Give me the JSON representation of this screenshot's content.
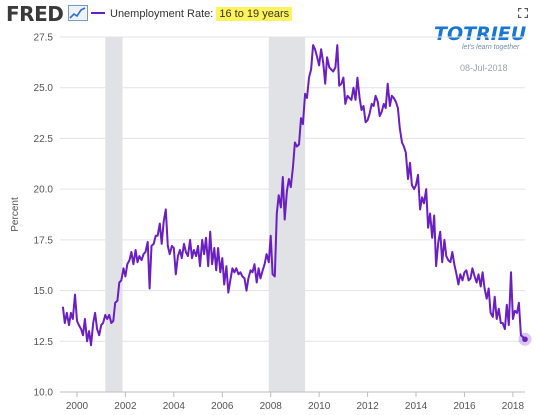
{
  "header": {
    "logo": "FRED",
    "legend_prefix": "Unemployment Rate: ",
    "legend_highlight": "16 to 19 years",
    "series_color": "#6a1fc1",
    "highlight_color": "#fff35c"
  },
  "watermark": {
    "brand": "TOTRIEU",
    "tagline": "let's learn together",
    "date": "08-Jul-2018",
    "color": "#1976d2"
  },
  "chart_data": {
    "type": "line",
    "ylabel": "Percent",
    "xlim": [
      1999.3,
      2018.5
    ],
    "ylim": [
      10.0,
      27.5
    ],
    "y_ticks": [
      "10.0",
      "12.5",
      "15.0",
      "17.5",
      "20.0",
      "22.5",
      "25.0",
      "27.5"
    ],
    "x_ticks": [
      "2000",
      "2002",
      "2004",
      "2006",
      "2008",
      "2010",
      "2012",
      "2014",
      "2016",
      "2018"
    ],
    "recessions": [
      [
        2001.17,
        2001.88
      ],
      [
        2007.92,
        2009.42
      ]
    ],
    "grid": true,
    "series": [
      {
        "values": [
          [
            1999.42,
            14.2
          ],
          [
            1999.5,
            13.4
          ],
          [
            1999.58,
            13.9
          ],
          [
            1999.67,
            13.3
          ],
          [
            1999.75,
            13.9
          ],
          [
            1999.83,
            13.6
          ],
          [
            1999.92,
            14.8
          ],
          [
            2000.0,
            13.5
          ],
          [
            2000.08,
            13.3
          ],
          [
            2000.17,
            13.1
          ],
          [
            2000.25,
            12.8
          ],
          [
            2000.33,
            13.6
          ],
          [
            2000.42,
            12.5
          ],
          [
            2000.5,
            13.0
          ],
          [
            2000.58,
            12.3
          ],
          [
            2000.67,
            13.4
          ],
          [
            2000.75,
            13.9
          ],
          [
            2000.83,
            13.1
          ],
          [
            2000.92,
            12.8
          ],
          [
            2001.0,
            13.3
          ],
          [
            2001.08,
            13.4
          ],
          [
            2001.17,
            13.8
          ],
          [
            2001.25,
            13.6
          ],
          [
            2001.33,
            13.8
          ],
          [
            2001.42,
            13.4
          ],
          [
            2001.5,
            13.5
          ],
          [
            2001.58,
            14.4
          ],
          [
            2001.67,
            14.5
          ],
          [
            2001.75,
            15.4
          ],
          [
            2001.83,
            15.5
          ],
          [
            2001.92,
            16.1
          ],
          [
            2002.0,
            15.7
          ],
          [
            2002.08,
            16.3
          ],
          [
            2002.17,
            16.5
          ],
          [
            2002.25,
            16.9
          ],
          [
            2002.33,
            16.3
          ],
          [
            2002.42,
            17.0
          ],
          [
            2002.5,
            16.4
          ],
          [
            2002.58,
            16.7
          ],
          [
            2002.67,
            16.5
          ],
          [
            2002.75,
            16.8
          ],
          [
            2002.83,
            16.9
          ],
          [
            2002.92,
            17.4
          ],
          [
            2003.0,
            15.1
          ],
          [
            2003.08,
            17.2
          ],
          [
            2003.17,
            17.3
          ],
          [
            2003.25,
            17.7
          ],
          [
            2003.33,
            17.7
          ],
          [
            2003.42,
            18.3
          ],
          [
            2003.5,
            17.3
          ],
          [
            2003.58,
            18.4
          ],
          [
            2003.67,
            19.0
          ],
          [
            2003.75,
            17.2
          ],
          [
            2003.83,
            16.8
          ],
          [
            2003.92,
            17.2
          ],
          [
            2004.0,
            17.1
          ],
          [
            2004.08,
            15.8
          ],
          [
            2004.17,
            16.7
          ],
          [
            2004.25,
            17.0
          ],
          [
            2004.33,
            16.6
          ],
          [
            2004.42,
            17.3
          ],
          [
            2004.5,
            16.9
          ],
          [
            2004.58,
            16.7
          ],
          [
            2004.67,
            17.5
          ],
          [
            2004.75,
            16.6
          ],
          [
            2004.83,
            17.0
          ],
          [
            2004.92,
            16.7
          ],
          [
            2005.0,
            17.2
          ],
          [
            2005.08,
            16.2
          ],
          [
            2005.17,
            17.5
          ],
          [
            2005.25,
            16.8
          ],
          [
            2005.33,
            17.6
          ],
          [
            2005.42,
            16.2
          ],
          [
            2005.5,
            17.9
          ],
          [
            2005.58,
            16.3
          ],
          [
            2005.67,
            17.1
          ],
          [
            2005.75,
            16.0
          ],
          [
            2005.83,
            17.1
          ],
          [
            2005.92,
            15.9
          ],
          [
            2006.0,
            16.6
          ],
          [
            2006.08,
            15.3
          ],
          [
            2006.17,
            16.2
          ],
          [
            2006.25,
            14.9
          ],
          [
            2006.33,
            15.5
          ],
          [
            2006.42,
            16.1
          ],
          [
            2006.5,
            15.9
          ],
          [
            2006.58,
            16.1
          ],
          [
            2006.67,
            15.8
          ],
          [
            2006.75,
            15.9
          ],
          [
            2006.83,
            15.7
          ],
          [
            2006.92,
            15.6
          ],
          [
            2007.0,
            15.0
          ],
          [
            2007.08,
            15.6
          ],
          [
            2007.17,
            16.0
          ],
          [
            2007.25,
            15.9
          ],
          [
            2007.33,
            16.3
          ],
          [
            2007.42,
            15.4
          ],
          [
            2007.5,
            16.1
          ],
          [
            2007.58,
            15.6
          ],
          [
            2007.67,
            16.0
          ],
          [
            2007.75,
            16.3
          ],
          [
            2007.83,
            16.8
          ],
          [
            2007.92,
            16.4
          ],
          [
            2008.0,
            17.7
          ],
          [
            2008.08,
            15.8
          ],
          [
            2008.17,
            15.7
          ],
          [
            2008.25,
            18.8
          ],
          [
            2008.33,
            19.7
          ],
          [
            2008.42,
            19.1
          ],
          [
            2008.5,
            20.6
          ],
          [
            2008.58,
            18.5
          ],
          [
            2008.67,
            19.9
          ],
          [
            2008.75,
            20.5
          ],
          [
            2008.83,
            20.1
          ],
          [
            2008.92,
            21.1
          ],
          [
            2009.0,
            22.3
          ],
          [
            2009.08,
            22.1
          ],
          [
            2009.17,
            22.2
          ],
          [
            2009.25,
            23.5
          ],
          [
            2009.33,
            23.2
          ],
          [
            2009.42,
            24.7
          ],
          [
            2009.5,
            24.5
          ],
          [
            2009.58,
            25.5
          ],
          [
            2009.67,
            25.9
          ],
          [
            2009.75,
            27.1
          ],
          [
            2009.83,
            26.9
          ],
          [
            2009.92,
            26.5
          ],
          [
            2010.0,
            26.1
          ],
          [
            2010.08,
            26.9
          ],
          [
            2010.17,
            26.2
          ],
          [
            2010.25,
            25.2
          ],
          [
            2010.33,
            26.5
          ],
          [
            2010.42,
            26.0
          ],
          [
            2010.5,
            25.9
          ],
          [
            2010.58,
            25.8
          ],
          [
            2010.67,
            26.0
          ],
          [
            2010.75,
            27.1
          ],
          [
            2010.83,
            25.1
          ],
          [
            2010.92,
            25.2
          ],
          [
            2011.0,
            25.5
          ],
          [
            2011.08,
            24.2
          ],
          [
            2011.17,
            24.6
          ],
          [
            2011.25,
            24.5
          ],
          [
            2011.33,
            24.4
          ],
          [
            2011.42,
            25.0
          ],
          [
            2011.5,
            24.4
          ],
          [
            2011.58,
            25.5
          ],
          [
            2011.67,
            24.5
          ],
          [
            2011.75,
            23.9
          ],
          [
            2011.83,
            24.1
          ],
          [
            2011.92,
            23.3
          ],
          [
            2012.0,
            23.4
          ],
          [
            2012.08,
            23.7
          ],
          [
            2012.17,
            24.2
          ],
          [
            2012.25,
            24.1
          ],
          [
            2012.33,
            24.6
          ],
          [
            2012.42,
            24.3
          ],
          [
            2012.5,
            23.6
          ],
          [
            2012.58,
            23.8
          ],
          [
            2012.67,
            24.2
          ],
          [
            2012.75,
            24.0
          ],
          [
            2012.83,
            25.2
          ],
          [
            2012.92,
            24.1
          ],
          [
            2013.0,
            24.6
          ],
          [
            2013.08,
            24.5
          ],
          [
            2013.17,
            24.3
          ],
          [
            2013.25,
            24.0
          ],
          [
            2013.33,
            23.0
          ],
          [
            2013.42,
            22.3
          ],
          [
            2013.5,
            22.1
          ],
          [
            2013.58,
            21.8
          ],
          [
            2013.67,
            20.5
          ],
          [
            2013.75,
            21.3
          ],
          [
            2013.83,
            20.2
          ],
          [
            2013.92,
            20.0
          ],
          [
            2014.0,
            20.2
          ],
          [
            2014.08,
            20.7
          ],
          [
            2014.17,
            19.0
          ],
          [
            2014.25,
            19.6
          ],
          [
            2014.33,
            19.3
          ],
          [
            2014.42,
            20.0
          ],
          [
            2014.5,
            18.1
          ],
          [
            2014.58,
            18.8
          ],
          [
            2014.67,
            17.6
          ],
          [
            2014.75,
            18.7
          ],
          [
            2014.83,
            16.2
          ],
          [
            2014.92,
            17.4
          ],
          [
            2015.0,
            17.9
          ],
          [
            2015.08,
            16.4
          ],
          [
            2015.17,
            17.5
          ],
          [
            2015.25,
            16.7
          ],
          [
            2015.33,
            16.5
          ],
          [
            2015.42,
            16.4
          ],
          [
            2015.5,
            16.9
          ],
          [
            2015.58,
            16.3
          ],
          [
            2015.67,
            15.8
          ],
          [
            2015.75,
            15.3
          ],
          [
            2015.83,
            15.8
          ],
          [
            2015.92,
            15.5
          ],
          [
            2016.0,
            15.9
          ],
          [
            2016.08,
            16.0
          ],
          [
            2016.17,
            15.5
          ],
          [
            2016.25,
            15.6
          ],
          [
            2016.33,
            16.1
          ],
          [
            2016.42,
            15.7
          ],
          [
            2016.5,
            15.4
          ],
          [
            2016.58,
            15.8
          ],
          [
            2016.67,
            15.2
          ],
          [
            2016.75,
            15.9
          ],
          [
            2016.83,
            15.1
          ],
          [
            2016.92,
            14.6
          ],
          [
            2017.0,
            15.1
          ],
          [
            2017.08,
            13.9
          ],
          [
            2017.17,
            13.7
          ],
          [
            2017.25,
            14.7
          ],
          [
            2017.33,
            13.6
          ],
          [
            2017.42,
            14.1
          ],
          [
            2017.5,
            13.4
          ],
          [
            2017.58,
            13.4
          ],
          [
            2017.67,
            13.1
          ],
          [
            2017.75,
            14.3
          ],
          [
            2017.83,
            13.3
          ],
          [
            2017.92,
            15.9
          ],
          [
            2018.0,
            13.6
          ],
          [
            2018.08,
            14.0
          ],
          [
            2018.17,
            13.9
          ],
          [
            2018.25,
            14.4
          ],
          [
            2018.33,
            12.8
          ],
          [
            2018.42,
            12.7
          ],
          [
            2018.5,
            12.6
          ]
        ]
      }
    ]
  }
}
